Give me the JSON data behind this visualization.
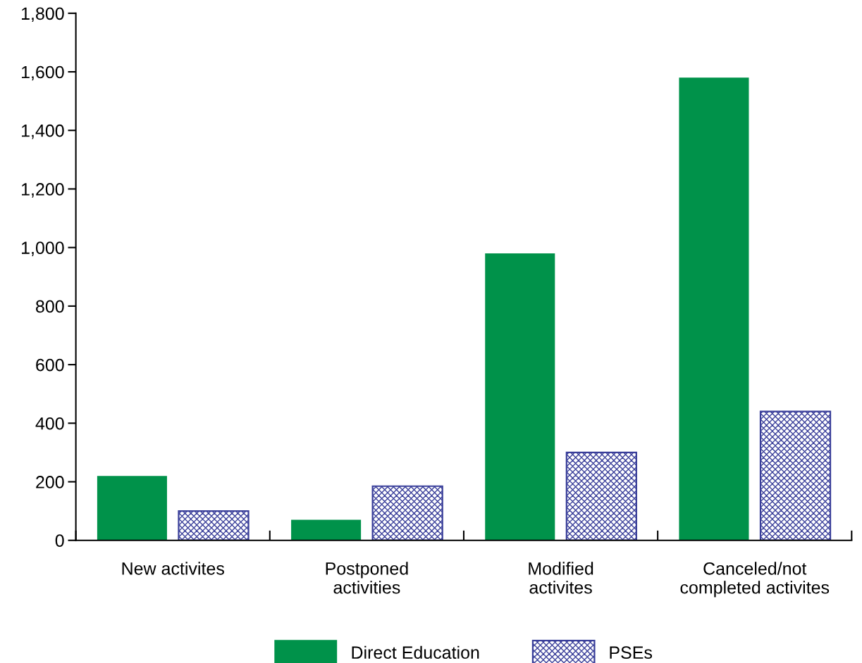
{
  "chart_data": {
    "type": "bar",
    "categories": [
      "New activites",
      "Postponed\nactivities",
      "Modified\nactivites",
      "Canceled/not\ncompleted activites"
    ],
    "series": [
      {
        "name": "Direct Education",
        "color": "#00924a",
        "values": [
          220,
          70,
          980,
          1580
        ]
      },
      {
        "name": "PSEs",
        "color": "#3a3f9a",
        "values": [
          100,
          185,
          300,
          440
        ]
      }
    ],
    "ylim": [
      0,
      1800
    ],
    "yticks": [
      0,
      {
        "value": 200,
        "label": "200"
      },
      {
        "value": 400,
        "label": "400"
      },
      {
        "value": 600,
        "label": "600"
      },
      {
        "value": 800,
        "label": "800"
      },
      {
        "value": 1000,
        "label": "1,000"
      },
      {
        "value": 1200,
        "label": "1,200"
      },
      {
        "value": 1400,
        "label": "1,400"
      },
      {
        "value": 1600,
        "label": "1,600"
      },
      {
        "value": 1800,
        "label": "1,800"
      }
    ],
    "grid": false,
    "legend": "bottom"
  }
}
